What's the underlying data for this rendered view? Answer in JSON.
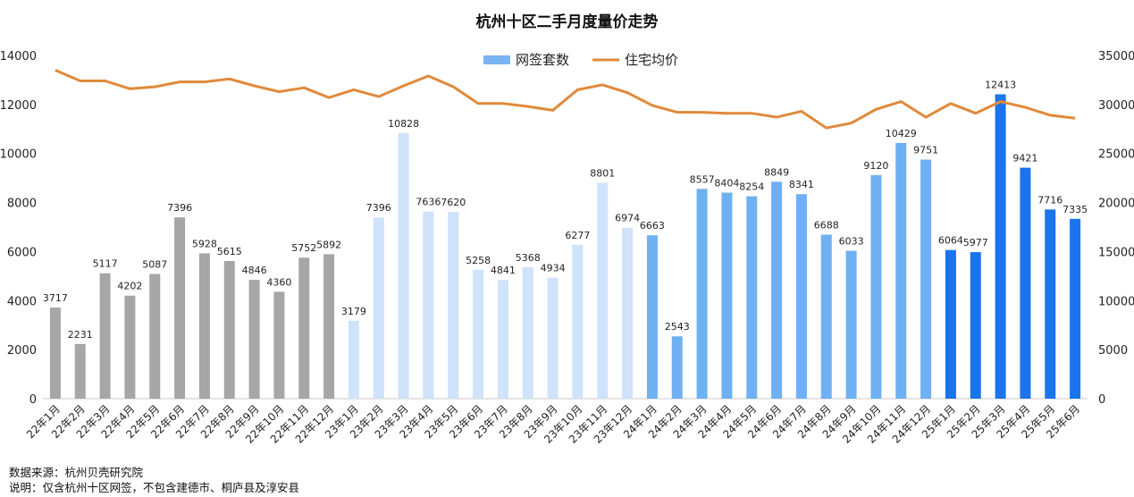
{
  "chart_data": {
    "type": "bar",
    "title": "杭州十区二手月度量价走势",
    "categories": [
      "22年1月",
      "22年2月",
      "22年3月",
      "22年4月",
      "22年5月",
      "22年6月",
      "22年7月",
      "22年8月",
      "22年9月",
      "22年10月",
      "22年11月",
      "22年12月",
      "23年1月",
      "23年2月",
      "23年3月",
      "23年4月",
      "23年5月",
      "23年6月",
      "23年7月",
      "23年8月",
      "23年9月",
      "23年10月",
      "23年11月",
      "23年12月",
      "24年1月",
      "24年2月",
      "24年3月",
      "24年4月",
      "24年5月",
      "24年6月",
      "24年7月",
      "24年8月",
      "24年9月",
      "24年10月",
      "24年11月",
      "24年12月",
      "25年1月",
      "25年2月",
      "25年3月",
      "25年4月",
      "25年5月",
      "25年6月"
    ],
    "series": [
      {
        "name": "网签套数",
        "type": "bar",
        "axis": "left",
        "values": [
          3717,
          2231,
          5117,
          4202,
          5087,
          7396,
          5928,
          5615,
          4846,
          4360,
          5752,
          5892,
          3179,
          7396,
          10828,
          7636,
          7620,
          5258,
          4841,
          5368,
          4934,
          6277,
          8801,
          6974,
          6663,
          2543,
          8557,
          8404,
          8254,
          8849,
          8341,
          6688,
          6033,
          9120,
          10429,
          9751,
          6064,
          5977,
          12413,
          9421,
          7716,
          7335
        ]
      },
      {
        "name": "住宅均价",
        "type": "line",
        "axis": "right",
        "values": [
          33500,
          32400,
          32400,
          31600,
          31800,
          32300,
          32300,
          32600,
          31900,
          31300,
          31700,
          30700,
          31500,
          30800,
          31900,
          32900,
          31800,
          30100,
          30100,
          29800,
          29400,
          31500,
          32000,
          31200,
          29900,
          29200,
          29200,
          29100,
          29100,
          28700,
          29300,
          27600,
          28100,
          29500,
          30300,
          28700,
          30100,
          29100,
          30300,
          29700,
          28900,
          28600
        ]
      }
    ],
    "ylim_left": [
      0,
      14000
    ],
    "ylim_right": [
      0,
      35000
    ],
    "yticks_left": [
      "0",
      "2000",
      "4000",
      "6000",
      "8000",
      "10000",
      "12000",
      "14000"
    ],
    "yticks_right": [
      "0",
      "5000",
      "10000",
      "15000",
      "20000",
      "25000",
      "30000",
      "35000"
    ],
    "bar_colors_by_year": {
      "22": "#a6a6a6",
      "23": "#cfe3fa",
      "24": "#6fb0f2",
      "25": "#1a74ec"
    },
    "line_color": "#e08a3c",
    "legend_position": "top-center",
    "grid": false
  },
  "footer": {
    "source": "数据来源：杭州贝壳研究院",
    "note": "说明：仅含杭州十区网签，不包含建德市、桐庐县及淳安县"
  }
}
